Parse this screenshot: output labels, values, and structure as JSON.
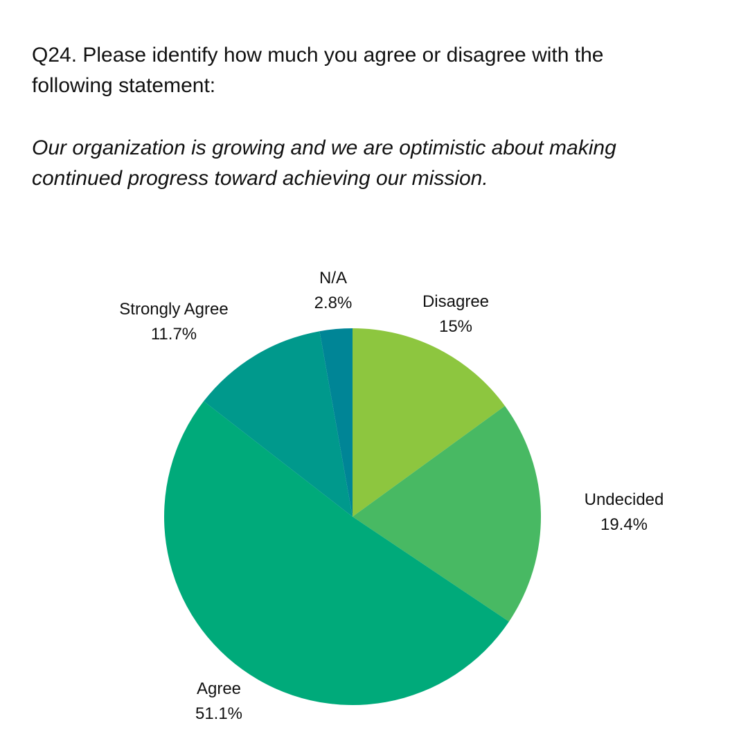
{
  "question": {
    "line1": "Q24. Please identify how much you agree or disagree with the",
    "line2": "following statement:"
  },
  "statement": {
    "line1": "Our organization is growing and we are optimistic about making",
    "line2": "continued progress toward achieving our mission."
  },
  "chart_data": {
    "type": "pie",
    "title": "Q24. Please identify how much you agree or disagree with the following statement: Our organization is growing and we are optimistic about making continued progress toward achieving our mission.",
    "start": "top, clockwise",
    "slices": [
      {
        "label": "Disagree",
        "value": 15,
        "display": "15%",
        "color": "#8dc63f"
      },
      {
        "label": "Undecided",
        "value": 19.4,
        "display": "19.4%",
        "color": "#48b963"
      },
      {
        "label": "Agree",
        "value": 51.1,
        "display": "51.1%",
        "color": "#00aa7a"
      },
      {
        "label": "Strongly Agree",
        "value": 11.7,
        "display": "11.7%",
        "color": "#00998c"
      },
      {
        "label": "N/A",
        "value": 2.8,
        "display": "2.8%",
        "color": "#008596"
      }
    ]
  }
}
